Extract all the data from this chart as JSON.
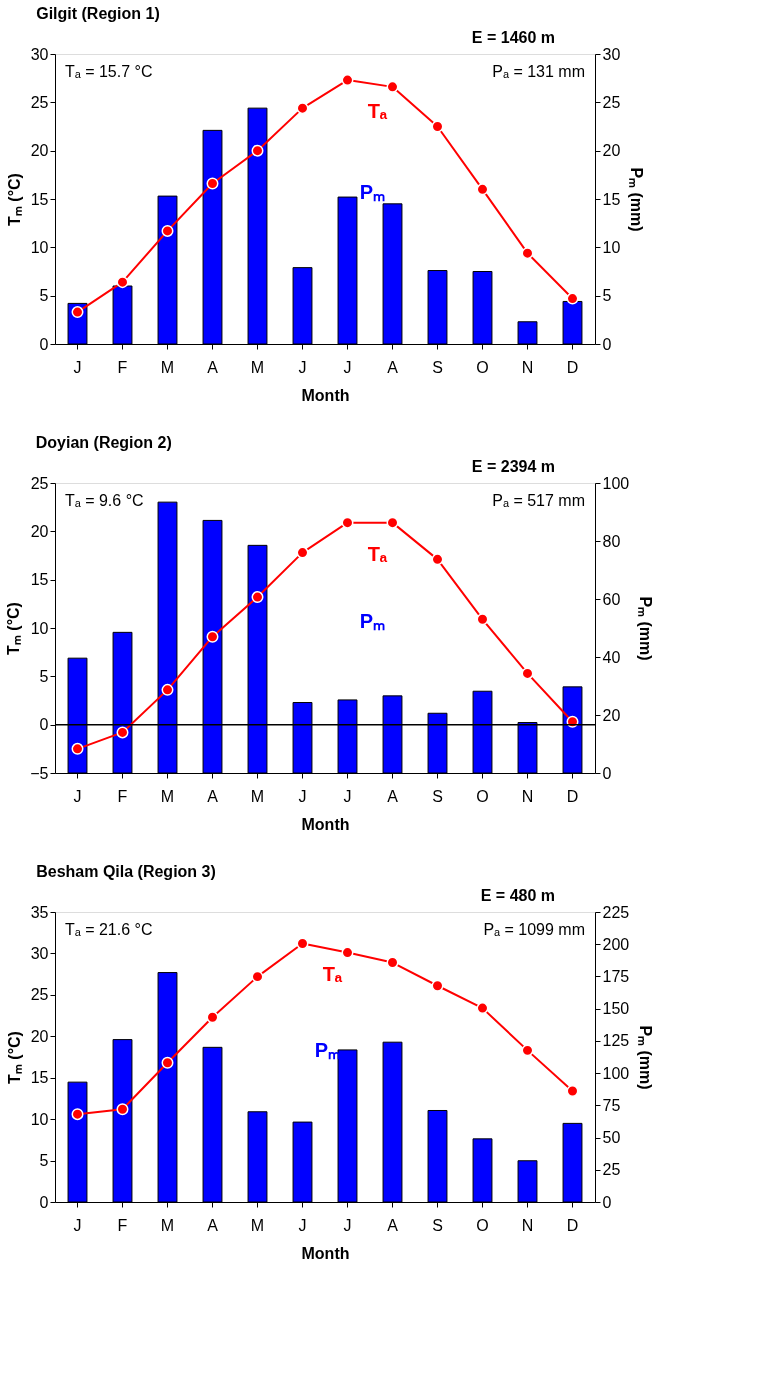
{
  "chart_data": [
    {
      "type": "bar",
      "title": "Gilgit (Region 1)",
      "xlabel": "Month",
      "ylabel": "Tₘ (°C)",
      "y2label": "Pₘ (mm)",
      "annotations": [
        "Tₐ = 15.7 °C",
        "Pₐ = 131 mm",
        "E = 1460 m"
      ],
      "categories": [
        "J",
        "F",
        "M",
        "A",
        "M",
        "J",
        "J",
        "A",
        "S",
        "O",
        "N",
        "D"
      ],
      "ylim": [
        0,
        30
      ],
      "yticks": [
        0,
        5,
        10,
        15,
        20,
        25,
        30
      ],
      "y2lim": [
        0,
        30
      ],
      "y2ticks": [
        0,
        5,
        10,
        15,
        20,
        25,
        30
      ],
      "marker": "circle",
      "line_style": "solid",
      "series": [
        {
          "name": "Pₘ",
          "axis": "y2",
          "color": "#0000ff",
          "values": [
            4.2,
            6.0,
            15.3,
            22.1,
            24.4,
            7.9,
            15.2,
            14.5,
            7.6,
            7.5,
            2.3,
            4.4
          ]
        },
        {
          "name": "Tₐ",
          "type": "line",
          "color": "#ff0000",
          "values": [
            3.3,
            6.4,
            11.7,
            16.6,
            20.0,
            24.4,
            27.3,
            26.6,
            22.5,
            16.0,
            9.4,
            4.7
          ]
        }
      ]
    },
    {
      "type": "bar",
      "title": "Doyian (Region 2)",
      "xlabel": "Month",
      "ylabel": "Tₘ (°C)",
      "y2label": "Pₘ (mm)",
      "annotations": [
        "Tₐ = 9.6 °C",
        "Pₐ = 517 mm",
        "E = 2394 m"
      ],
      "categories": [
        "J",
        "F",
        "M",
        "A",
        "M",
        "J",
        "J",
        "A",
        "S",
        "O",
        "N",
        "D"
      ],
      "ylim": [
        -5,
        25
      ],
      "yticks": [
        -5,
        0,
        5,
        10,
        15,
        20,
        25
      ],
      "y2lim": [
        0,
        100
      ],
      "y2ticks": [
        0,
        20,
        40,
        60,
        80,
        100
      ],
      "marker": "circle",
      "line_style": "solid",
      "ref_lines": [
        {
          "axis": "y",
          "value": 0,
          "color": "#000000"
        }
      ],
      "series": [
        {
          "name": "Pₘ",
          "axis": "y2",
          "color": "#0000ff",
          "values": [
            39.6,
            48.5,
            93.4,
            87.1,
            78.5,
            24.3,
            25.2,
            26.6,
            20.6,
            28.2,
            17.4,
            29.7
          ]
        },
        {
          "name": "Tₐ",
          "type": "line",
          "color": "#ff0000",
          "values": [
            -2.5,
            -0.8,
            3.6,
            9.1,
            13.2,
            17.8,
            20.9,
            20.9,
            17.1,
            10.9,
            5.3,
            0.3
          ]
        }
      ]
    },
    {
      "type": "bar",
      "title": "Besham Qila (Region 3)",
      "xlabel": "Month",
      "ylabel": "Tₘ (°C)",
      "y2label": "Pₘ (mm)",
      "annotations": [
        "Tₐ = 21.6 °C",
        "Pₐ = 1099 mm",
        "E = 480 m"
      ],
      "categories": [
        "J",
        "F",
        "M",
        "A",
        "M",
        "J",
        "J",
        "A",
        "S",
        "O",
        "N",
        "D"
      ],
      "ylim": [
        0,
        35
      ],
      "yticks": [
        0,
        5,
        10,
        15,
        20,
        25,
        30,
        35
      ],
      "y2lim": [
        0,
        225
      ],
      "y2ticks": [
        0,
        25,
        50,
        75,
        100,
        125,
        150,
        175,
        200,
        225
      ],
      "marker": "circle",
      "line_style": "solid",
      "series": [
        {
          "name": "Pₘ",
          "axis": "y2",
          "color": "#0000ff",
          "values": [
            93,
            126,
            178,
            120,
            70,
            62,
            118,
            124,
            71,
            49,
            32,
            61
          ]
        },
        {
          "name": "Tₐ",
          "type": "line",
          "color": "#ff0000",
          "values": [
            10.6,
            11.2,
            16.8,
            22.3,
            27.2,
            31.2,
            30.1,
            28.9,
            26.1,
            23.4,
            18.3,
            13.4
          ]
        }
      ]
    }
  ]
}
